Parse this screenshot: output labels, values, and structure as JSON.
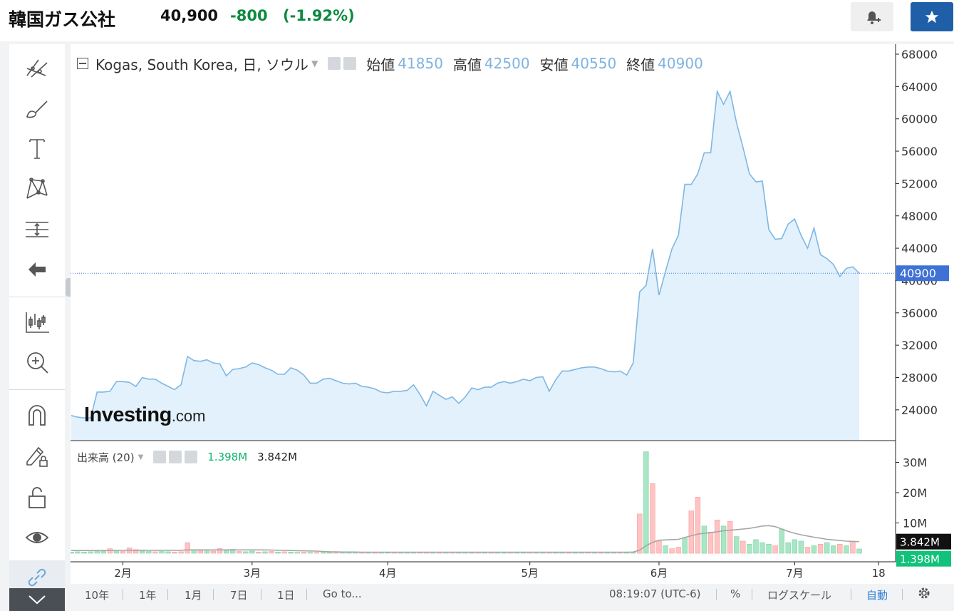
{
  "header": {
    "name": "韓国ガス公社",
    "price": "40,900",
    "change": "-800",
    "change_pct": "(-1.92%)",
    "alert_icon": "bell-plus-icon",
    "favorite_icon": "star-icon",
    "change_color": "#0b8a3e",
    "favorite_color": "#1f5fa8"
  },
  "legend": {
    "symbol": "Kogas, South Korea, 日, ソウル",
    "open_label": "始値",
    "open": "41850",
    "high_label": "高値",
    "high": "42500",
    "low_label": "安値",
    "low": "40550",
    "close_label": "終値",
    "close": "40900"
  },
  "volume_legend": {
    "label": "出来高 (20)",
    "volume": "1.398M",
    "ma": "3.842M"
  },
  "watermark": {
    "brand": "Investing",
    "suffix": ".com"
  },
  "price_badge": "40900",
  "toolbar": {
    "tools": [
      "crosshair-lines-icon",
      "brush-icon",
      "text-tool-icon",
      "pattern-icon",
      "measure-icon",
      "back-arrow-icon",
      "indicators-icon",
      "zoom-icon",
      "magnet-icon",
      "lock-pencil-icon",
      "unlock-icon",
      "eye-icon",
      "link-icon"
    ]
  },
  "bottom_bar": {
    "ranges": [
      "10年",
      "1年",
      "1月",
      "7日",
      "1日"
    ],
    "goto": "Go to...",
    "time": "08:19:07 (UTC-6)",
    "percent": "%",
    "log_scale": "ログスケール",
    "auto": "自動",
    "auto_color": "#2e7fd6"
  },
  "chart_data": {
    "type": "area",
    "price": {
      "yticks": [
        24000,
        28000,
        32000,
        36000,
        40000,
        44000,
        48000,
        52000,
        56000,
        60000,
        64000,
        68000
      ],
      "tick_labels": [
        "24000",
        "28000",
        "32000",
        "36000",
        "40000",
        "44000",
        "48000",
        "52000",
        "56000",
        "60000",
        "64000",
        "68000"
      ],
      "last": 40900,
      "values": [
        23300,
        23100,
        23000,
        23000,
        26200,
        26200,
        26300,
        27500,
        27500,
        27400,
        26900,
        28000,
        27800,
        27800,
        27300,
        26900,
        26500,
        27100,
        30600,
        30100,
        30000,
        30200,
        29800,
        29700,
        28200,
        29000,
        29100,
        29300,
        29800,
        29600,
        29200,
        28900,
        28400,
        28400,
        29200,
        28900,
        28300,
        27300,
        27300,
        27800,
        27900,
        27600,
        27300,
        27200,
        27300,
        26900,
        26800,
        26600,
        26200,
        26100,
        26300,
        26300,
        26400,
        27100,
        25900,
        24500,
        26300,
        25800,
        25300,
        25600,
        24800,
        25600,
        26700,
        26500,
        26800,
        26800,
        27300,
        27500,
        27300,
        27500,
        27800,
        27600,
        28000,
        28100,
        26300,
        27700,
        28800,
        28800,
        29000,
        29200,
        29300,
        29300,
        29100,
        28800,
        28700,
        28800,
        28300,
        29800,
        38600,
        39400,
        43900,
        38200,
        41100,
        43900,
        45600,
        51900,
        51900,
        53200,
        55800,
        55800,
        63400,
        61800,
        63400,
        59500,
        56500,
        53200,
        52200,
        52300,
        46300,
        45100,
        45200,
        47000,
        47600,
        45600,
        44000,
        46500,
        43200,
        42700,
        42000,
        40500,
        41500,
        41700,
        40900
      ]
    },
    "volume": {
      "yticks": [
        10000000,
        20000000,
        30000000
      ],
      "tick_labels": [
        "10M",
        "20M",
        "30M"
      ],
      "ma_badge": "3.842M",
      "vol_badge": "1.398M",
      "bars": [
        [
          1,
          0.4
        ],
        [
          1,
          0.5
        ],
        [
          1,
          0.4
        ],
        [
          1,
          0.5
        ],
        [
          1,
          0.6
        ],
        [
          1,
          0.7
        ],
        [
          0,
          1.5
        ],
        [
          1,
          0.8
        ],
        [
          0,
          0.6
        ],
        [
          0,
          1.8
        ],
        [
          0,
          1.2
        ],
        [
          1,
          0.7
        ],
        [
          1,
          0.6
        ],
        [
          0,
          0.5
        ],
        [
          1,
          0.6
        ],
        [
          1,
          0.5
        ],
        [
          0,
          0.4
        ],
        [
          0,
          0.5
        ],
        [
          0,
          3.5
        ],
        [
          1,
          1.2
        ],
        [
          0,
          0.9
        ],
        [
          1,
          0.8
        ],
        [
          0,
          0.7
        ],
        [
          0,
          1.6
        ],
        [
          1,
          0.9
        ],
        [
          1,
          1.3
        ],
        [
          0,
          0.6
        ],
        [
          1,
          0.5
        ],
        [
          1,
          0.7
        ],
        [
          0,
          0.4
        ],
        [
          1,
          0.5
        ],
        [
          0,
          0.6
        ],
        [
          1,
          0.4
        ],
        [
          0,
          0.5
        ],
        [
          1,
          0.4
        ],
        [
          1,
          0.3
        ],
        [
          0,
          0.4
        ],
        [
          1,
          0.3
        ],
        [
          0,
          0.3
        ],
        [
          1,
          0.3
        ],
        [
          1,
          0.3
        ],
        [
          0,
          0.3
        ],
        [
          1,
          0.3
        ],
        [
          1,
          0.3
        ],
        [
          1,
          0.3
        ],
        [
          0,
          0.3
        ],
        [
          1,
          0.3
        ],
        [
          0,
          0.3
        ],
        [
          1,
          0.3
        ],
        [
          1,
          0.3
        ],
        [
          0,
          0.3
        ],
        [
          1,
          0.3
        ],
        [
          1,
          0.3
        ],
        [
          1,
          0.3
        ],
        [
          0,
          0.3
        ],
        [
          0,
          0.3
        ],
        [
          1,
          0.3
        ],
        [
          0,
          0.3
        ],
        [
          1,
          0.3
        ],
        [
          0,
          0.3
        ],
        [
          1,
          0.3
        ],
        [
          1,
          0.3
        ],
        [
          1,
          0.3
        ],
        [
          0,
          0.3
        ],
        [
          1,
          0.3
        ],
        [
          0,
          0.3
        ],
        [
          1,
          0.3
        ],
        [
          1,
          0.3
        ],
        [
          0,
          0.3
        ],
        [
          1,
          0.3
        ],
        [
          1,
          0.3
        ],
        [
          0,
          0.3
        ],
        [
          1,
          0.3
        ],
        [
          1,
          0.3
        ],
        [
          0,
          0.3
        ],
        [
          1,
          0.3
        ],
        [
          1,
          0.3
        ],
        [
          0,
          0.3
        ],
        [
          1,
          0.3
        ],
        [
          1,
          0.3
        ],
        [
          0,
          0.3
        ],
        [
          1,
          0.3
        ],
        [
          0,
          0.3
        ],
        [
          1,
          0.3
        ],
        [
          1,
          0.3
        ],
        [
          0,
          0.3
        ],
        [
          1,
          0.3
        ],
        [
          1,
          0.3
        ],
        [
          0,
          13
        ],
        [
          1,
          33.5
        ],
        [
          0,
          23
        ],
        [
          0,
          4
        ],
        [
          1,
          2.5
        ],
        [
          0,
          1.5
        ],
        [
          0,
          2
        ],
        [
          1,
          5
        ],
        [
          0,
          14
        ],
        [
          0,
          18.5
        ],
        [
          1,
          9
        ],
        [
          0,
          7
        ],
        [
          0,
          11
        ],
        [
          1,
          9
        ],
        [
          0,
          10.5
        ],
        [
          1,
          5.5
        ],
        [
          0,
          4
        ],
        [
          1,
          3
        ],
        [
          1,
          4.5
        ],
        [
          1,
          3.5
        ],
        [
          1,
          3
        ],
        [
          0,
          2.5
        ],
        [
          1,
          8
        ],
        [
          1,
          3.5
        ],
        [
          1,
          4.5
        ],
        [
          1,
          4
        ],
        [
          0,
          2
        ],
        [
          1,
          2.5
        ],
        [
          0,
          3
        ],
        [
          1,
          3.5
        ],
        [
          1,
          2.5
        ],
        [
          0,
          3
        ],
        [
          1,
          2.5
        ],
        [
          0,
          4
        ],
        [
          1,
          1.4
        ]
      ],
      "ma": [
        0.9,
        0.9,
        0.9,
        0.9,
        0.9,
        0.9,
        0.95,
        0.95,
        1,
        1,
        1,
        1,
        1,
        1,
        1,
        1,
        1,
        1,
        1.1,
        1.1,
        1.1,
        1.1,
        1.1,
        1.1,
        1.1,
        1.1,
        1.1,
        1.1,
        1.1,
        1.1,
        1.1,
        1.05,
        1.0,
        0.95,
        0.9,
        0.85,
        0.8,
        0.75,
        0.7,
        0.6,
        0.5,
        0.45,
        0.4,
        0.4,
        0.4,
        0.35,
        0.35,
        0.35,
        0.35,
        0.35,
        0.35,
        0.35,
        0.35,
        0.35,
        0.35,
        0.35,
        0.35,
        0.35,
        0.35,
        0.35,
        0.35,
        0.35,
        0.35,
        0.35,
        0.35,
        0.35,
        0.35,
        0.35,
        0.35,
        0.35,
        0.35,
        0.35,
        0.35,
        0.35,
        0.35,
        0.35,
        0.35,
        0.35,
        0.35,
        0.35,
        0.35,
        0.35,
        0.35,
        0.35,
        0.35,
        0.35,
        0.35,
        0.4,
        1.0,
        2.5,
        3.6,
        4.3,
        4.4,
        4.5,
        4.6,
        5.2,
        5.8,
        6.3,
        6.6,
        6.8,
        7.1,
        7.4,
        7.6,
        7.8,
        8.0,
        8.2,
        8.6,
        9.0,
        9.1,
        8.8,
        8.0,
        7.2,
        6.6,
        6.1,
        5.7,
        5.3,
        5.0,
        4.6,
        4.4,
        4.2,
        4.0,
        3.9,
        3.842
      ]
    },
    "x_labels": [
      {
        "label": "2月",
        "index": 8
      },
      {
        "label": "3月",
        "index": 28
      },
      {
        "label": "4月",
        "index": 49
      },
      {
        "label": "5月",
        "index": 71
      },
      {
        "label": "6月",
        "index": 91
      },
      {
        "label": "7月",
        "index": 112
      },
      {
        "label": "18",
        "index": 125
      }
    ],
    "colors": {
      "line": "#7fb7e3",
      "fill": "#e2f1fb",
      "up": "#a8e6c5",
      "down": "#ffc3c3",
      "ma_line": "#a6a6a6",
      "badge_blue": "#3f72d6",
      "badge_green": "#12c17a"
    }
  }
}
